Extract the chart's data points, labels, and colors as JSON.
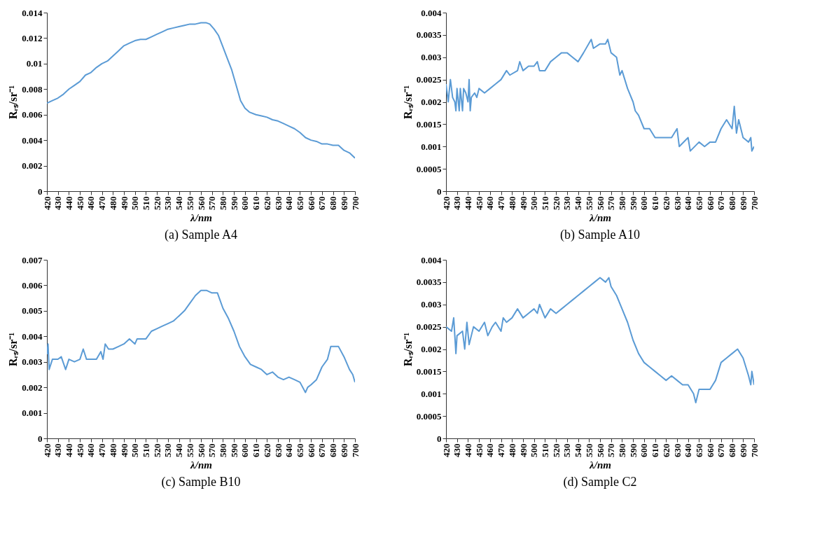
{
  "chart_data": [
    {
      "type": "line",
      "title": "(a) Sample A4",
      "xlabel": "λ/nm",
      "ylabel": "Rᵣₛ/sr⁻¹",
      "color": "#5b9bd5",
      "grid": false,
      "xlim": [
        420,
        700
      ],
      "ylim": [
        0,
        0.014
      ],
      "xticks": [
        420,
        430,
        440,
        450,
        460,
        470,
        480,
        490,
        500,
        510,
        520,
        530,
        540,
        550,
        560,
        570,
        580,
        590,
        600,
        610,
        620,
        630,
        640,
        650,
        660,
        670,
        680,
        690,
        700
      ],
      "yticks": [
        0,
        0.002,
        0.004,
        0.006,
        0.008,
        0.01,
        0.012,
        0.014
      ],
      "x": [
        420,
        425,
        430,
        435,
        440,
        445,
        450,
        455,
        460,
        465,
        470,
        475,
        480,
        485,
        490,
        495,
        500,
        505,
        510,
        515,
        520,
        525,
        530,
        535,
        540,
        545,
        550,
        555,
        560,
        565,
        568,
        572,
        576,
        580,
        584,
        588,
        592,
        596,
        600,
        604,
        610,
        615,
        620,
        625,
        630,
        635,
        640,
        645,
        650,
        655,
        660,
        665,
        670,
        675,
        680,
        685,
        690,
        695,
        700
      ],
      "values": [
        0.0069,
        0.0071,
        0.0073,
        0.0076,
        0.008,
        0.0083,
        0.0086,
        0.0091,
        0.0093,
        0.0097,
        0.01,
        0.0102,
        0.0106,
        0.011,
        0.0114,
        0.0116,
        0.0118,
        0.0119,
        0.0119,
        0.0121,
        0.0123,
        0.0125,
        0.0127,
        0.0128,
        0.0129,
        0.013,
        0.0131,
        0.0131,
        0.0132,
        0.0132,
        0.0131,
        0.0127,
        0.0122,
        0.0113,
        0.0104,
        0.0095,
        0.0083,
        0.0071,
        0.0065,
        0.0062,
        0.006,
        0.0059,
        0.0058,
        0.0056,
        0.0055,
        0.0053,
        0.0051,
        0.0049,
        0.0046,
        0.0042,
        0.004,
        0.0039,
        0.0037,
        0.0037,
        0.0036,
        0.0036,
        0.0032,
        0.003,
        0.0026
      ]
    },
    {
      "type": "line",
      "title": "(b) Sample A10",
      "xlabel": "λ/nm",
      "ylabel": "Rᵣₛ/sr⁻¹",
      "color": "#5b9bd5",
      "grid": false,
      "xlim": [
        420,
        700
      ],
      "ylim": [
        0,
        0.004
      ],
      "xticks": [
        420,
        430,
        440,
        450,
        460,
        470,
        480,
        490,
        500,
        510,
        520,
        530,
        540,
        550,
        560,
        570,
        580,
        590,
        600,
        610,
        620,
        630,
        640,
        650,
        660,
        670,
        680,
        690,
        700
      ],
      "yticks": [
        0,
        0.0005,
        0.001,
        0.0015,
        0.002,
        0.0025,
        0.003,
        0.0035,
        0.004
      ],
      "x": [
        420,
        422,
        424,
        426,
        428,
        429,
        430,
        432,
        433,
        435,
        436,
        438,
        440,
        441,
        442,
        443,
        446,
        448,
        450,
        455,
        460,
        465,
        470,
        475,
        478,
        485,
        487,
        490,
        495,
        500,
        503,
        505,
        510,
        515,
        520,
        525,
        530,
        535,
        540,
        545,
        552,
        554,
        560,
        565,
        567,
        570,
        575,
        578,
        580,
        585,
        590,
        592,
        595,
        600,
        605,
        610,
        620,
        625,
        630,
        632,
        640,
        642,
        650,
        655,
        660,
        665,
        670,
        675,
        680,
        682,
        684,
        686,
        690,
        695,
        697,
        698,
        700
      ],
      "values": [
        0.0024,
        0.002,
        0.0025,
        0.0021,
        0.002,
        0.0018,
        0.0023,
        0.0018,
        0.0023,
        0.0018,
        0.0023,
        0.0022,
        0.002,
        0.0025,
        0.0018,
        0.0021,
        0.0022,
        0.0021,
        0.0023,
        0.0022,
        0.0023,
        0.0024,
        0.0025,
        0.0027,
        0.0026,
        0.0027,
        0.0029,
        0.0027,
        0.0028,
        0.0028,
        0.0029,
        0.0027,
        0.0027,
        0.0029,
        0.003,
        0.0031,
        0.0031,
        0.003,
        0.0029,
        0.0031,
        0.0034,
        0.0032,
        0.0033,
        0.0033,
        0.0034,
        0.0031,
        0.003,
        0.0026,
        0.0027,
        0.0023,
        0.002,
        0.0018,
        0.0017,
        0.0014,
        0.0014,
        0.0012,
        0.0012,
        0.0012,
        0.0014,
        0.001,
        0.0012,
        0.0009,
        0.0011,
        0.001,
        0.0011,
        0.0011,
        0.0014,
        0.0016,
        0.0014,
        0.0019,
        0.0013,
        0.0016,
        0.0012,
        0.0011,
        0.0012,
        0.0009,
        0.001
      ]
    },
    {
      "type": "line",
      "title": "(c) Sample B10",
      "xlabel": "λ/nm",
      "ylabel": "Rᵣₛ/sr⁻¹",
      "color": "#5b9bd5",
      "grid": false,
      "xlim": [
        420,
        700
      ],
      "ylim": [
        0,
        0.007
      ],
      "xticks": [
        420,
        430,
        440,
        450,
        460,
        470,
        480,
        490,
        500,
        510,
        520,
        530,
        540,
        550,
        560,
        570,
        580,
        590,
        600,
        610,
        620,
        630,
        640,
        650,
        660,
        670,
        680,
        690,
        700
      ],
      "yticks": [
        0,
        0.001,
        0.002,
        0.003,
        0.004,
        0.005,
        0.006,
        0.007
      ],
      "x": [
        420,
        421,
        422,
        425,
        430,
        433,
        437,
        440,
        445,
        450,
        453,
        456,
        460,
        465,
        469,
        471,
        473,
        476,
        480,
        485,
        490,
        495,
        500,
        502,
        510,
        515,
        520,
        525,
        530,
        535,
        540,
        545,
        550,
        555,
        560,
        565,
        570,
        575,
        580,
        585,
        590,
        595,
        600,
        605,
        610,
        615,
        620,
        625,
        630,
        635,
        640,
        645,
        650,
        655,
        657,
        660,
        665,
        670,
        675,
        678,
        680,
        685,
        690,
        695,
        698,
        700
      ],
      "values": [
        0.0033,
        0.0037,
        0.0027,
        0.0031,
        0.0031,
        0.0032,
        0.0027,
        0.0031,
        0.003,
        0.0031,
        0.0035,
        0.0031,
        0.0031,
        0.0031,
        0.0034,
        0.0031,
        0.0037,
        0.0035,
        0.0035,
        0.0036,
        0.0037,
        0.0039,
        0.0037,
        0.0039,
        0.0039,
        0.0042,
        0.0043,
        0.0044,
        0.0045,
        0.0046,
        0.0048,
        0.005,
        0.0053,
        0.0056,
        0.0058,
        0.0058,
        0.0057,
        0.0057,
        0.0051,
        0.0047,
        0.0042,
        0.0036,
        0.0032,
        0.0029,
        0.0028,
        0.0027,
        0.0025,
        0.0026,
        0.0024,
        0.0023,
        0.0024,
        0.0023,
        0.0022,
        0.0018,
        0.002,
        0.0021,
        0.0023,
        0.0028,
        0.0031,
        0.0036,
        0.0036,
        0.0036,
        0.0032,
        0.0027,
        0.0025,
        0.0022
      ]
    },
    {
      "type": "line",
      "title": "(d) Sample C2",
      "xlabel": "λ/nm",
      "ylabel": "Rᵣₛ/sr⁻¹",
      "color": "#5b9bd5",
      "grid": false,
      "xlim": [
        420,
        700
      ],
      "ylim": [
        0,
        0.004
      ],
      "xticks": [
        420,
        430,
        440,
        450,
        460,
        470,
        480,
        490,
        500,
        510,
        520,
        530,
        540,
        550,
        560,
        570,
        580,
        590,
        600,
        610,
        620,
        630,
        640,
        650,
        660,
        670,
        680,
        690,
        700
      ],
      "yticks": [
        0,
        0.0005,
        0.001,
        0.0015,
        0.002,
        0.0025,
        0.003,
        0.0035,
        0.004
      ],
      "x": [
        420,
        425,
        427,
        429,
        430,
        435,
        437,
        439,
        441,
        445,
        450,
        455,
        458,
        462,
        465,
        470,
        472,
        475,
        480,
        485,
        490,
        495,
        500,
        503,
        505,
        510,
        515,
        520,
        525,
        530,
        535,
        540,
        545,
        550,
        555,
        560,
        565,
        568,
        570,
        575,
        580,
        585,
        590,
        595,
        600,
        605,
        610,
        615,
        620,
        625,
        630,
        635,
        640,
        645,
        647,
        650,
        655,
        660,
        665,
        670,
        675,
        680,
        685,
        690,
        695,
        697,
        698,
        700
      ],
      "values": [
        0.0025,
        0.0024,
        0.0027,
        0.0019,
        0.0023,
        0.0024,
        0.002,
        0.0026,
        0.0021,
        0.0025,
        0.0024,
        0.0026,
        0.0023,
        0.0025,
        0.0026,
        0.0024,
        0.0027,
        0.0026,
        0.0027,
        0.0029,
        0.0027,
        0.0028,
        0.0029,
        0.0028,
        0.003,
        0.0027,
        0.0029,
        0.0028,
        0.0029,
        0.003,
        0.0031,
        0.0032,
        0.0033,
        0.0034,
        0.0035,
        0.0036,
        0.0035,
        0.0036,
        0.0034,
        0.0032,
        0.0029,
        0.0026,
        0.0022,
        0.0019,
        0.0017,
        0.0016,
        0.0015,
        0.0014,
        0.0013,
        0.0014,
        0.0013,
        0.0012,
        0.0012,
        0.001,
        0.0008,
        0.0011,
        0.0011,
        0.0011,
        0.0013,
        0.0017,
        0.0018,
        0.0019,
        0.002,
        0.0018,
        0.0014,
        0.0012,
        0.0015,
        0.0012
      ]
    }
  ]
}
